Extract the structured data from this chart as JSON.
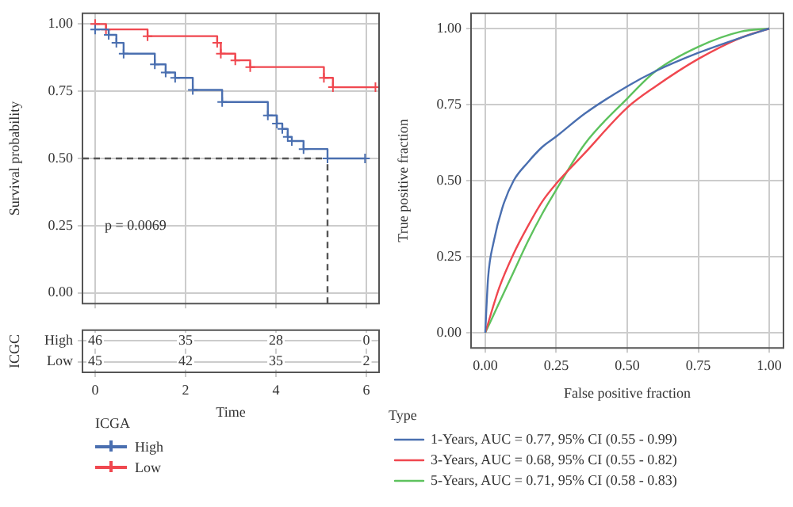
{
  "chart_data": [
    {
      "type": "step",
      "ylabel": "Survival probability",
      "xlim": [
        -0.28,
        6.28
      ],
      "xticks": [
        {
          "value": 0,
          "label": null
        },
        {
          "value": 2,
          "label": null
        },
        {
          "value": 4,
          "label": null
        },
        {
          "value": 6,
          "label": null
        }
      ],
      "ylim": [
        -0.04,
        1.04
      ],
      "yticks": [
        {
          "value": 0,
          "label": "0.00"
        },
        {
          "value": 0.25,
          "label": "0.25"
        },
        {
          "value": 0.5,
          "label": "0.50"
        },
        {
          "value": 0.75,
          "label": "0.75"
        },
        {
          "value": 1,
          "label": "1.00"
        }
      ],
      "tick_labels": "y",
      "grid": true,
      "marker": "cross",
      "legend": "bottom",
      "legend_title": "ICGA",
      "series": [
        {
          "name": "High",
          "color": "#4a6fb0",
          "x": [
            0,
            0.3,
            0.47,
            0.63,
            1.32,
            1.56,
            1.77,
            2.16,
            2.81,
            3.82,
            4.02,
            4.14,
            4.26,
            4.35,
            4.61,
            5.14,
            5.97
          ],
          "values": [
            0.98,
            0.96,
            0.93,
            0.89,
            0.85,
            0.82,
            0.8,
            0.755,
            0.71,
            0.66,
            0.63,
            0.61,
            0.58,
            0.565,
            0.535,
            0.5,
            0.5
          ]
        },
        {
          "name": "Low",
          "color": "#f0474f",
          "x": [
            0,
            0.24,
            1.16,
            2.7,
            2.78,
            3.1,
            3.43,
            5.06,
            5.26,
            6.2
          ],
          "values": [
            1.0,
            0.98,
            0.955,
            0.93,
            0.89,
            0.865,
            0.84,
            0.8,
            0.765,
            0.765
          ]
        }
      ],
      "ref_lines": [
        {
          "axis": "y",
          "value": 0.5,
          "color": "#555555",
          "line_style": "dashed"
        },
        {
          "axis": "x",
          "value": 5.14,
          "color": "#555555",
          "line_style": "dashed"
        }
      ],
      "annotations": [
        "p = 0.0069"
      ]
    },
    {
      "type": "heatmap",
      "xlabel": "Time",
      "ylabel": "ICGC",
      "x": [
        0,
        2,
        4,
        6
      ],
      "xlim": [
        -0.28,
        6.28
      ],
      "xticks": [
        0,
        2,
        4,
        6
      ],
      "y_categories": [
        "High",
        "Low"
      ],
      "cells": [
        [
          46,
          35,
          28,
          0
        ],
        [
          45,
          42,
          35,
          2
        ]
      ],
      "data_labels": true,
      "grid": true
    },
    {
      "type": "line",
      "xlabel": "False positive fraction",
      "ylabel": "True positive fraction",
      "xlim": [
        -0.05,
        1.05
      ],
      "ylim": [
        -0.05,
        1.05
      ],
      "xticks": [
        {
          "value": 0,
          "label": "0.00"
        },
        {
          "value": 0.25,
          "label": "0.25"
        },
        {
          "value": 0.5,
          "label": "0.50"
        },
        {
          "value": 0.75,
          "label": "0.75"
        },
        {
          "value": 1,
          "label": "1.00"
        }
      ],
      "yticks": [
        {
          "value": 0,
          "label": "0.00"
        },
        {
          "value": 0.25,
          "label": "0.25"
        },
        {
          "value": 0.5,
          "label": "0.50"
        },
        {
          "value": 0.75,
          "label": "0.75"
        },
        {
          "value": 1,
          "label": "1.00"
        }
      ],
      "grid": true,
      "marker": "none",
      "legend": "bottom",
      "legend_title": "Type",
      "series": [
        {
          "name": "1-Years, AUC = 0.77, 95% CI (0.55 - 0.99)",
          "color": "#4a6fb0",
          "x": [
            0,
            0.01,
            0.03,
            0.06,
            0.1,
            0.15,
            0.2,
            0.25,
            0.35,
            0.5,
            0.6,
            0.75,
            0.9,
            1
          ],
          "values": [
            0,
            0.18,
            0.3,
            0.41,
            0.5,
            0.56,
            0.61,
            0.645,
            0.72,
            0.81,
            0.86,
            0.92,
            0.97,
            1
          ]
        },
        {
          "name": "3-Years, AUC = 0.68, 95% CI (0.55 - 0.82)",
          "color": "#f0474f",
          "x": [
            0,
            0.05,
            0.1,
            0.15,
            0.2,
            0.25,
            0.35,
            0.5,
            0.6,
            0.75,
            0.9,
            1
          ],
          "values": [
            0,
            0.15,
            0.26,
            0.35,
            0.43,
            0.49,
            0.59,
            0.74,
            0.81,
            0.9,
            0.97,
            1
          ]
        },
        {
          "name": "5-Years, AUC = 0.71, 95% CI (0.58 - 0.83)",
          "color": "#5ec25e",
          "x": [
            0,
            0.05,
            0.1,
            0.15,
            0.2,
            0.25,
            0.35,
            0.5,
            0.6,
            0.75,
            0.9,
            1
          ],
          "values": [
            0,
            0.1,
            0.2,
            0.3,
            0.39,
            0.47,
            0.62,
            0.77,
            0.86,
            0.94,
            0.99,
            1
          ]
        }
      ]
    }
  ]
}
